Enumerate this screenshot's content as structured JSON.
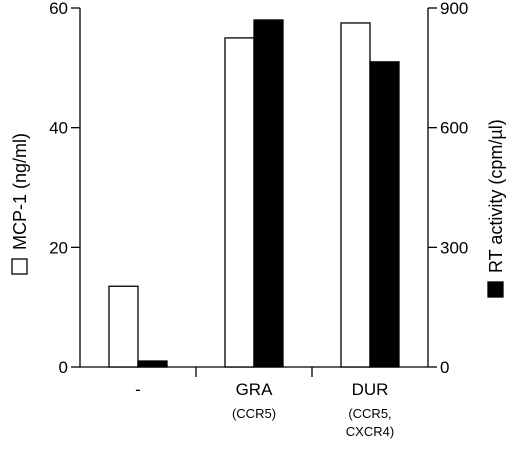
{
  "chart_data": {
    "type": "bar",
    "categories": [
      "-",
      "GRA",
      "DUR"
    ],
    "category_sublabels": [
      [],
      [
        "(CCR5)"
      ],
      [
        "(CCR5,",
        "CXCR4)"
      ]
    ],
    "series": [
      {
        "name": "MCP-1",
        "axis": "left",
        "fill": "#ffffff",
        "values": [
          13.5,
          55,
          57.5
        ]
      },
      {
        "name": "RT activity",
        "axis": "right",
        "fill": "#000000",
        "values": [
          15,
          870,
          765
        ]
      }
    ],
    "ylabel": "MCP-1 (ng/ml)",
    "y2label": "RT activity (cpm/µl)",
    "ylim": [
      0,
      60
    ],
    "y2lim": [
      0,
      900
    ],
    "yticks": [
      0,
      20,
      40,
      60
    ],
    "y2ticks": [
      0,
      300,
      600,
      900
    ],
    "grid": false,
    "legend": "axis-label-markers"
  }
}
